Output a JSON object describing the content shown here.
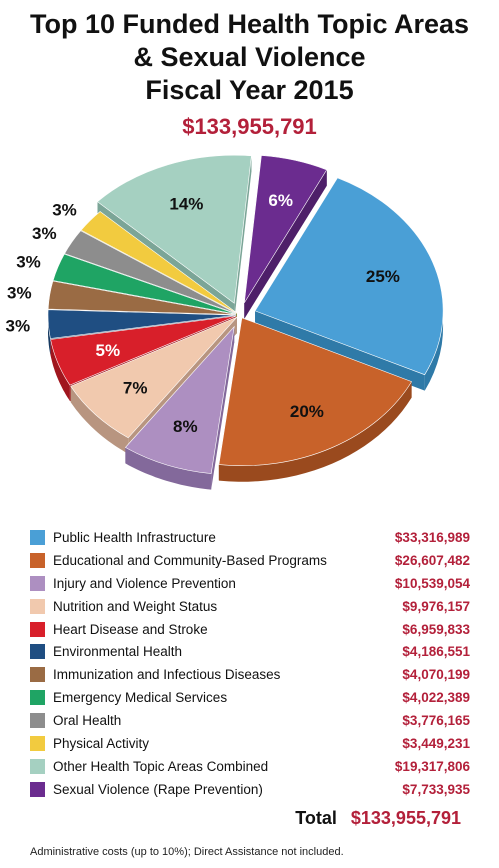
{
  "title": {
    "line1": "Top 10 Funded Health Topic Areas",
    "line2": "& Sexual Violence",
    "line3": "Fiscal Year 2015"
  },
  "total_top": "$133,955,791",
  "chart_data": {
    "type": "pie",
    "title": "Top 10 Funded Health Topic Areas & Sexual Violence Fiscal Year 2015",
    "slices": [
      {
        "label": "Public Health Infrastructure",
        "amount": "$33,316,989",
        "value": 33316989,
        "percent_label": "25%",
        "color": "#4a9fd6",
        "side": "#2f7aa8",
        "exploded": true
      },
      {
        "label": "Educational and Community-Based Programs",
        "amount": "$26,607,482",
        "value": 26607482,
        "percent_label": "20%",
        "color": "#c8622a",
        "side": "#9a4a1e",
        "exploded": false
      },
      {
        "label": "Injury and Violence Prevention",
        "amount": "$10,539,054",
        "value": 10539054,
        "percent_label": "8%",
        "color": "#ad8fc1",
        "side": "#83699b",
        "exploded": true
      },
      {
        "label": "Nutrition and Weight Status",
        "amount": "$9,976,157",
        "value": 9976157,
        "percent_label": "7%",
        "color": "#f1c9ae",
        "side": "#b89580",
        "exploded": false
      },
      {
        "label": "Heart Disease and Stroke",
        "amount": "$6,959,833",
        "value": 6959833,
        "percent_label": "5%",
        "color": "#d81f2a",
        "side": "#a0161e",
        "exploded": false
      },
      {
        "label": "Environmental Health",
        "amount": "$4,186,551",
        "value": 4186551,
        "percent_label": "3%",
        "color": "#1f4e82",
        "side": "#163a61",
        "exploded": false
      },
      {
        "label": "Immunization and Infectious Diseases",
        "amount": "$4,070,199",
        "value": 4070199,
        "percent_label": "3%",
        "color": "#9a6b44",
        "side": "#744f31",
        "exploded": false
      },
      {
        "label": "Emergency Medical Services",
        "amount": "$4,022,389",
        "value": 4022389,
        "percent_label": "3%",
        "color": "#1fa464",
        "side": "#167a4a",
        "exploded": false
      },
      {
        "label": "Oral Health",
        "amount": "$3,776,165",
        "value": 3776165,
        "percent_label": "3%",
        "color": "#8d8d8d",
        "side": "#676767",
        "exploded": false
      },
      {
        "label": "Physical Activity",
        "amount": "$3,449,231",
        "value": 3449231,
        "percent_label": "3%",
        "color": "#f2cb3f",
        "side": "#bc9a2a",
        "exploded": false
      },
      {
        "label": "Other Health Topic Areas Combined",
        "amount": "$19,317,806",
        "value": 19317806,
        "percent_label": "14%",
        "color": "#a5d0c1",
        "side": "#7ba597",
        "exploded": true
      },
      {
        "label": "Sexual Violence (Rape Prevention)",
        "amount": "$7,733,935",
        "value": 7733935,
        "percent_label": "6%",
        "color": "#6b2c8f",
        "side": "#4e1f69",
        "exploded": true
      }
    ]
  },
  "total": {
    "label": "Total",
    "value": "$133,955,791"
  },
  "footnote": "Administrative costs (up to 10%); Direct Assistance not included."
}
